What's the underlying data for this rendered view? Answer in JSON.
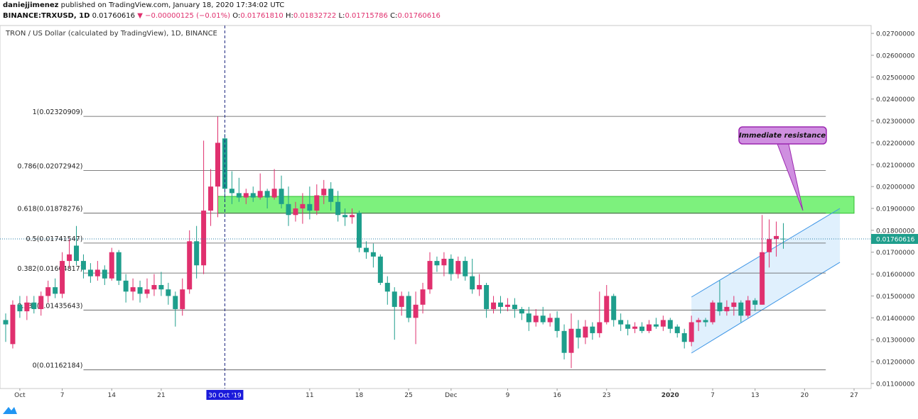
{
  "header": {
    "author": "daniejjimenez",
    "published": " published on TradingView.com, January 18, 2020 17:34:02 UTC",
    "symbol": "BINANCE:TRXUSD, 1D",
    "last": "0.01760616",
    "change": "▼ −0.00000125 (−0.01%)",
    "ohlc": [
      {
        "label": "O:",
        "value": "0.01761810"
      },
      {
        "label": "H:",
        "value": "0.01832722"
      },
      {
        "label": "L:",
        "value": "0.01715786"
      },
      {
        "label": "C:",
        "value": "0.01760616"
      }
    ]
  },
  "footer": "TradingView",
  "chart_data": {
    "type": "candlestick",
    "title": "TRON / US Dollar (calculated by TradingView), 1D, BINANCE",
    "up_color": "#e0306e",
    "down_color": "#1e9e8c",
    "ylim": [
      0.01077,
      0.02736
    ],
    "yticks": [
      {
        "value": 0.011,
        "label": "0.01100000"
      },
      {
        "value": 0.012,
        "label": "0.01200000"
      },
      {
        "value": 0.013,
        "label": "0.01300000"
      },
      {
        "value": 0.014,
        "label": "0.01400000"
      },
      {
        "value": 0.015,
        "label": "0.01500000"
      },
      {
        "value": 0.016,
        "label": "0.01600000"
      },
      {
        "value": 0.017,
        "label": "0.01700000"
      },
      {
        "value": 0.018,
        "label": "0.01800000"
      },
      {
        "value": 0.019,
        "label": "0.01900000"
      },
      {
        "value": 0.02,
        "label": "0.02000000"
      },
      {
        "value": 0.021,
        "label": "0.02100000"
      },
      {
        "value": 0.022,
        "label": "0.02200000"
      },
      {
        "value": 0.023,
        "label": "0.02300000"
      },
      {
        "value": 0.024,
        "label": "0.02400000"
      },
      {
        "value": 0.025,
        "label": "0.02500000"
      },
      {
        "value": 0.026,
        "label": "0.02600000"
      },
      {
        "value": 0.027,
        "label": "0.02700000"
      }
    ],
    "xticks": [
      {
        "value": 2,
        "label": "Oct"
      },
      {
        "value": 8,
        "label": "7"
      },
      {
        "value": 15,
        "label": "14"
      },
      {
        "value": 22,
        "label": "21"
      },
      {
        "value": 43,
        "label": "11"
      },
      {
        "value": 50,
        "label": "18"
      },
      {
        "value": 57,
        "label": "25"
      },
      {
        "value": 63,
        "label": "Dec"
      },
      {
        "value": 71,
        "label": "9"
      },
      {
        "value": 78,
        "label": "16"
      },
      {
        "value": 85,
        "label": "23"
      },
      {
        "value": 94,
        "label": "2020"
      },
      {
        "value": 100,
        "label": "7"
      },
      {
        "value": 106,
        "label": "13"
      },
      {
        "value": 113,
        "label": "20"
      },
      {
        "value": 120,
        "label": "27"
      }
    ],
    "crosshair": {
      "value": 31,
      "label": "30 Oct '19"
    },
    "candles": [
      [
        0.0139,
        0.0142,
        0.0129,
        0.0137
      ],
      [
        0.0128,
        0.0148,
        0.0126,
        0.0146
      ],
      [
        0.0146,
        0.015,
        0.014,
        0.0143
      ],
      [
        0.0143,
        0.015,
        0.0139,
        0.0147
      ],
      [
        0.0147,
        0.015,
        0.0142,
        0.0144
      ],
      [
        0.0144,
        0.0152,
        0.0141,
        0.015
      ],
      [
        0.015,
        0.0157,
        0.0147,
        0.0154
      ],
      [
        0.0154,
        0.0158,
        0.0149,
        0.0151
      ],
      [
        0.0151,
        0.017,
        0.0149,
        0.0166
      ],
      [
        0.0166,
        0.0176,
        0.0163,
        0.0169
      ],
      [
        0.0173,
        0.0182,
        0.0164,
        0.0166
      ],
      [
        0.0166,
        0.0169,
        0.0158,
        0.0162
      ],
      [
        0.0162,
        0.0165,
        0.0156,
        0.0159
      ],
      [
        0.0159,
        0.0166,
        0.0157,
        0.0162
      ],
      [
        0.0162,
        0.0164,
        0.0155,
        0.0158
      ],
      [
        0.0158,
        0.0172,
        0.0157,
        0.017
      ],
      [
        0.017,
        0.0171,
        0.0155,
        0.0157
      ],
      [
        0.0157,
        0.016,
        0.0147,
        0.0152
      ],
      [
        0.0152,
        0.0158,
        0.0148,
        0.0154
      ],
      [
        0.0154,
        0.0157,
        0.0147,
        0.0151
      ],
      [
        0.0151,
        0.0158,
        0.0149,
        0.0153
      ],
      [
        0.0153,
        0.016,
        0.015,
        0.0155
      ],
      [
        0.0155,
        0.0161,
        0.015,
        0.0153
      ],
      [
        0.0153,
        0.0156,
        0.0146,
        0.015
      ],
      [
        0.015,
        0.0152,
        0.0136,
        0.0144
      ],
      [
        0.0144,
        0.0158,
        0.0141,
        0.0153
      ],
      [
        0.0153,
        0.018,
        0.0151,
        0.0175
      ],
      [
        0.0175,
        0.0182,
        0.0158,
        0.0164
      ],
      [
        0.0164,
        0.0221,
        0.016,
        0.0189
      ],
      [
        0.0189,
        0.0208,
        0.0182,
        0.02
      ],
      [
        0.02,
        0.0232,
        0.0186,
        0.022
      ],
      [
        0.0222,
        0.0224,
        0.0194,
        0.0199
      ],
      [
        0.0199,
        0.0207,
        0.0192,
        0.0197
      ],
      [
        0.0197,
        0.0204,
        0.0193,
        0.0195
      ],
      [
        0.0195,
        0.0199,
        0.0192,
        0.0197
      ],
      [
        0.0197,
        0.02,
        0.0193,
        0.0195
      ],
      [
        0.0195,
        0.0206,
        0.0194,
        0.0198
      ],
      [
        0.0198,
        0.0199,
        0.019,
        0.0195
      ],
      [
        0.0195,
        0.0208,
        0.0194,
        0.0199
      ],
      [
        0.0199,
        0.0205,
        0.019,
        0.0192
      ],
      [
        0.0192,
        0.02,
        0.0182,
        0.0187
      ],
      [
        0.0187,
        0.0193,
        0.0184,
        0.019
      ],
      [
        0.019,
        0.0197,
        0.0183,
        0.0192
      ],
      [
        0.0192,
        0.02,
        0.0185,
        0.0189
      ],
      [
        0.0189,
        0.0201,
        0.0187,
        0.0196
      ],
      [
        0.0196,
        0.0203,
        0.0192,
        0.0199
      ],
      [
        0.0199,
        0.0202,
        0.0189,
        0.0193
      ],
      [
        0.0193,
        0.0198,
        0.0184,
        0.0187
      ],
      [
        0.0187,
        0.019,
        0.0182,
        0.0186
      ],
      [
        0.0186,
        0.019,
        0.0183,
        0.0187
      ],
      [
        0.0188,
        0.0189,
        0.017,
        0.0172
      ],
      [
        0.0172,
        0.0175,
        0.0167,
        0.017
      ],
      [
        0.017,
        0.0174,
        0.0163,
        0.0168
      ],
      [
        0.0168,
        0.0169,
        0.0155,
        0.0156
      ],
      [
        0.0156,
        0.0159,
        0.0146,
        0.0152
      ],
      [
        0.0152,
        0.0154,
        0.013,
        0.0145
      ],
      [
        0.0145,
        0.0152,
        0.0141,
        0.015
      ],
      [
        0.015,
        0.0152,
        0.0138,
        0.014
      ],
      [
        0.014,
        0.0152,
        0.0128,
        0.0146
      ],
      [
        0.0146,
        0.0156,
        0.0142,
        0.0153
      ],
      [
        0.0153,
        0.017,
        0.0151,
        0.0166
      ],
      [
        0.0166,
        0.0168,
        0.0161,
        0.0164
      ],
      [
        0.0164,
        0.017,
        0.0159,
        0.0167
      ],
      [
        0.0167,
        0.0169,
        0.0157,
        0.016
      ],
      [
        0.016,
        0.0168,
        0.0158,
        0.0166
      ],
      [
        0.0166,
        0.0168,
        0.0157,
        0.0159
      ],
      [
        0.0159,
        0.0167,
        0.0151,
        0.0153
      ],
      [
        0.0153,
        0.016,
        0.015,
        0.0155
      ],
      [
        0.0155,
        0.0156,
        0.014,
        0.0144
      ],
      [
        0.0144,
        0.015,
        0.0142,
        0.0147
      ],
      [
        0.0147,
        0.015,
        0.0142,
        0.0145
      ],
      [
        0.0145,
        0.0149,
        0.0143,
        0.0146
      ],
      [
        0.0146,
        0.0149,
        0.014,
        0.0144
      ],
      [
        0.0144,
        0.0145,
        0.0139,
        0.0142
      ],
      [
        0.0142,
        0.0145,
        0.0134,
        0.0138
      ],
      [
        0.0138,
        0.0144,
        0.0136,
        0.0141
      ],
      [
        0.0141,
        0.0145,
        0.0137,
        0.0138
      ],
      [
        0.0138,
        0.0142,
        0.0136,
        0.014
      ],
      [
        0.014,
        0.0143,
        0.0131,
        0.0134
      ],
      [
        0.0134,
        0.0137,
        0.0121,
        0.0124
      ],
      [
        0.0124,
        0.0142,
        0.0117,
        0.0135
      ],
      [
        0.0135,
        0.0139,
        0.0126,
        0.0131
      ],
      [
        0.0131,
        0.0139,
        0.0128,
        0.0136
      ],
      [
        0.0136,
        0.0138,
        0.013,
        0.0133
      ],
      [
        0.0133,
        0.0152,
        0.0131,
        0.0138
      ],
      [
        0.0138,
        0.0155,
        0.0137,
        0.015
      ],
      [
        0.015,
        0.0151,
        0.0136,
        0.0139
      ],
      [
        0.0139,
        0.0142,
        0.0134,
        0.0137
      ],
      [
        0.0137,
        0.0139,
        0.0132,
        0.0135
      ],
      [
        0.0135,
        0.0138,
        0.0133,
        0.0136
      ],
      [
        0.0136,
        0.0138,
        0.0133,
        0.0134
      ],
      [
        0.0134,
        0.0139,
        0.0133,
        0.0137
      ],
      [
        0.0137,
        0.014,
        0.0135,
        0.0136
      ],
      [
        0.0136,
        0.0141,
        0.0134,
        0.0139
      ],
      [
        0.0139,
        0.014,
        0.0133,
        0.0135
      ],
      [
        0.0136,
        0.0137,
        0.0131,
        0.0133
      ],
      [
        0.0133,
        0.0135,
        0.0126,
        0.0129
      ],
      [
        0.0129,
        0.0141,
        0.0127,
        0.0138
      ],
      [
        0.0138,
        0.014,
        0.0134,
        0.0139
      ],
      [
        0.0139,
        0.014,
        0.0136,
        0.0138
      ],
      [
        0.0138,
        0.0148,
        0.0137,
        0.0147
      ],
      [
        0.0147,
        0.0157,
        0.0141,
        0.0143
      ],
      [
        0.0143,
        0.0148,
        0.0141,
        0.0145
      ],
      [
        0.0145,
        0.015,
        0.0141,
        0.0147
      ],
      [
        0.0147,
        0.0148,
        0.0138,
        0.0141
      ],
      [
        0.0141,
        0.015,
        0.014,
        0.0148
      ],
      [
        0.0148,
        0.0149,
        0.0143,
        0.0146
      ],
      [
        0.0146,
        0.0187,
        0.0146,
        0.017
      ],
      [
        0.017,
        0.0185,
        0.0163,
        0.0176
      ],
      [
        0.0176,
        0.0184,
        0.0168,
        0.01774
      ],
      [
        0.0176181,
        0.01832722,
        0.01715786,
        0.01760616
      ]
    ],
    "fib_levels": [
      {
        "label": "1(0.02320909)",
        "value": 0.02320909
      },
      {
        "label": "0.786(0.02072942)",
        "value": 0.02072942
      },
      {
        "label": "0.618(0.01878276)",
        "value": 0.01878276
      },
      {
        "label": "0.5(0.01741547)",
        "value": 0.01741547
      },
      {
        "label": "0.382(0.01604817)",
        "value": 0.01604817
      },
      {
        "label": "0.236(0.01435643)",
        "value": 0.01435643
      },
      {
        "label": "0(0.01162184)",
        "value": 0.01162184
      }
    ],
    "resistance_zone": [
      0.01878,
      0.01955
    ],
    "channel": {
      "lower": [
        0.01239,
        0.01654
      ],
      "upper": [
        0.01495,
        0.019
      ]
    },
    "annotation": "Immediate resistance"
  }
}
